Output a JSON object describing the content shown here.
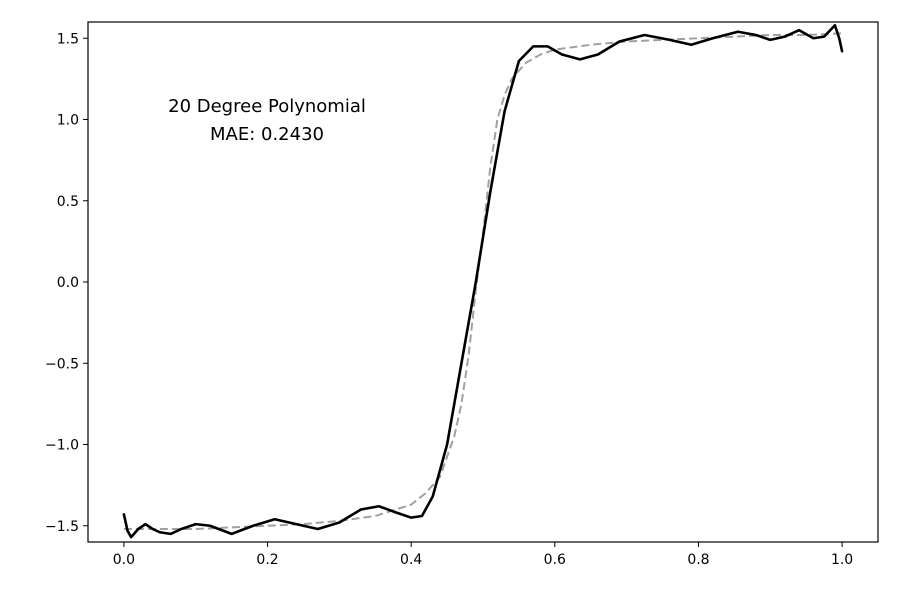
{
  "chart_data": {
    "type": "line",
    "title": "",
    "xlabel": "",
    "ylabel": "",
    "xlim": [
      -0.05,
      1.05
    ],
    "ylim": [
      -1.6,
      1.6
    ],
    "grid": false,
    "xticks": [
      0.0,
      0.2,
      0.4,
      0.6,
      0.8,
      1.0
    ],
    "xtick_labels": [
      "0.0",
      "0.2",
      "0.4",
      "0.6",
      "0.8",
      "1.0"
    ],
    "yticks": [
      -1.5,
      -1.0,
      -0.5,
      0.0,
      0.5,
      1.0,
      1.5
    ],
    "ytick_labels": [
      "−1.5",
      "−1.0",
      "−0.5",
      "0.0",
      "0.5",
      "1.0",
      "1.5"
    ],
    "annotation": [
      "20 Degree Polynomial",
      "MAE: 0.2430"
    ],
    "series": [
      {
        "style": "dashed",
        "color": "#a0a0a0",
        "x": [
          0.0,
          0.05,
          0.1,
          0.15,
          0.2,
          0.25,
          0.3,
          0.35,
          0.4,
          0.42,
          0.44,
          0.46,
          0.47,
          0.48,
          0.49,
          0.5,
          0.51,
          0.52,
          0.53,
          0.54,
          0.56,
          0.58,
          0.6,
          0.65,
          0.7,
          0.75,
          0.8,
          0.85,
          0.9,
          0.95,
          1.0
        ],
        "y": [
          -1.52,
          -1.52,
          -1.52,
          -1.51,
          -1.5,
          -1.49,
          -1.47,
          -1.44,
          -1.37,
          -1.3,
          -1.2,
          -0.95,
          -0.75,
          -0.45,
          -0.05,
          0.3,
          0.7,
          1.0,
          1.15,
          1.25,
          1.35,
          1.4,
          1.43,
          1.46,
          1.48,
          1.49,
          1.5,
          1.51,
          1.52,
          1.52,
          1.53
        ]
      },
      {
        "style": "solid",
        "color": "#000000",
        "x": [
          0.0,
          0.005,
          0.01,
          0.02,
          0.03,
          0.04,
          0.05,
          0.065,
          0.08,
          0.1,
          0.12,
          0.15,
          0.18,
          0.21,
          0.24,
          0.27,
          0.3,
          0.33,
          0.355,
          0.38,
          0.4,
          0.415,
          0.43,
          0.45,
          0.47,
          0.49,
          0.51,
          0.53,
          0.55,
          0.57,
          0.59,
          0.61,
          0.635,
          0.66,
          0.69,
          0.725,
          0.76,
          0.79,
          0.82,
          0.855,
          0.88,
          0.9,
          0.92,
          0.94,
          0.96,
          0.975,
          0.99,
          0.996,
          1.0
        ],
        "y": [
          -1.43,
          -1.53,
          -1.57,
          -1.52,
          -1.49,
          -1.52,
          -1.54,
          -1.55,
          -1.52,
          -1.49,
          -1.5,
          -1.55,
          -1.5,
          -1.46,
          -1.49,
          -1.52,
          -1.48,
          -1.4,
          -1.38,
          -1.42,
          -1.45,
          -1.44,
          -1.32,
          -1.0,
          -0.5,
          0.0,
          0.55,
          1.05,
          1.36,
          1.45,
          1.45,
          1.4,
          1.37,
          1.4,
          1.48,
          1.52,
          1.49,
          1.46,
          1.5,
          1.54,
          1.52,
          1.49,
          1.51,
          1.55,
          1.5,
          1.51,
          1.58,
          1.5,
          1.42
        ]
      }
    ]
  }
}
